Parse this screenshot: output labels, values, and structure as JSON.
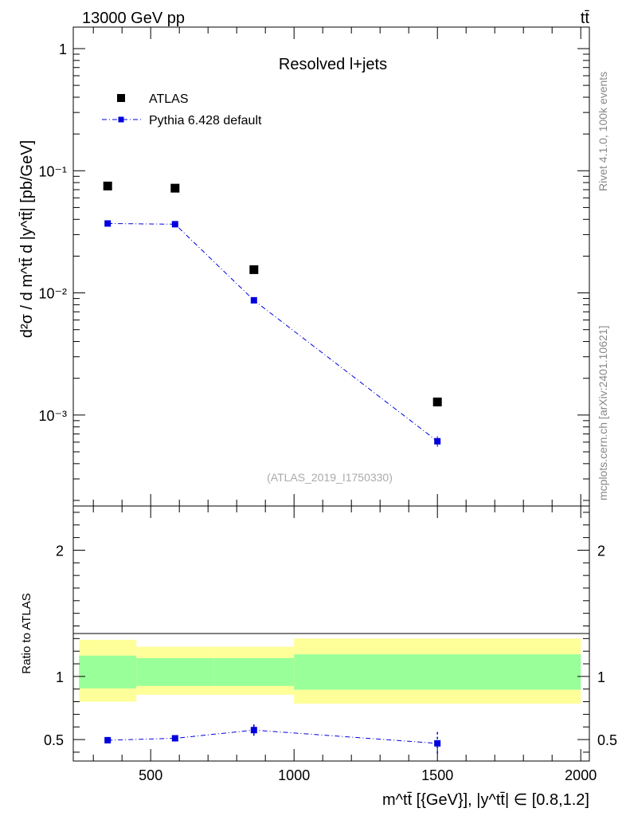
{
  "header": {
    "energy": "13000 GeV pp",
    "process": "tt̄"
  },
  "side_labels": {
    "rivet": "Rivet 4.1.0,  100k events",
    "source": "mcplots.cern.ch [arXiv:2401.10621]"
  },
  "chart_data": [
    {
      "type": "scatter",
      "panel": "main",
      "title": "Resolved l+jets",
      "analysis_id": "(ATLAS_2019_I1750330)",
      "ylabel": "d²σ / d m^tt̄ d |y^tt̄| [pb/GeV]",
      "yscale": "log",
      "ylim": [
        0.00018,
        1.5
      ],
      "xlim": [
        230,
        2030
      ],
      "yticks": [
        {
          "value": 1,
          "label": "1"
        },
        {
          "value": 0.1,
          "label": "10⁻¹"
        },
        {
          "value": 0.01,
          "label": "10⁻²"
        },
        {
          "value": 0.001,
          "label": "10⁻³"
        }
      ],
      "legend_position": "top-left",
      "series": [
        {
          "name": "ATLAS",
          "color": "#000000",
          "style": "markers",
          "x": [
            350,
            585,
            860,
            1500
          ],
          "y": [
            0.075,
            0.072,
            0.0155,
            0.00128
          ]
        },
        {
          "name": "Pythia 6.428 default",
          "color": "#0000dd",
          "style": "dash-dot line with markers",
          "x": [
            350,
            585,
            860,
            1500
          ],
          "y": [
            0.037,
            0.0365,
            0.0087,
            0.00061
          ],
          "yerr": [
            0.0008,
            0.0008,
            0.0004,
            6e-05
          ]
        }
      ]
    },
    {
      "type": "scatter",
      "panel": "ratio",
      "ylabel": "Ratio to ATLAS",
      "xlabel": "m^tt̄ [{GeV}], |y^tt̄| ∈ [0.8,1.2]",
      "ylim": [
        0.33,
        2.35
      ],
      "xlim": [
        230,
        2030
      ],
      "yticks": [
        {
          "value": 0.5,
          "label": "0.5"
        },
        {
          "value": 1,
          "label": "1"
        },
        {
          "value": 2,
          "label": "2"
        }
      ],
      "xticks": [
        {
          "value": 500,
          "label": "500"
        },
        {
          "value": 1000,
          "label": "1000"
        },
        {
          "value": 1500,
          "label": "1500"
        },
        {
          "value": 2000,
          "label": "2000"
        }
      ],
      "bands": [
        {
          "x0": 250,
          "x1": 450,
          "inner": [
            0.905,
            1.165
          ],
          "outer": [
            0.8,
            1.29
          ]
        },
        {
          "x0": 450,
          "x1": 720,
          "inner": [
            0.925,
            1.145
          ],
          "outer": [
            0.855,
            1.235
          ]
        },
        {
          "x0": 720,
          "x1": 1000,
          "inner": [
            0.925,
            1.145
          ],
          "outer": [
            0.855,
            1.235
          ]
        },
        {
          "x0": 1000,
          "x1": 2000,
          "inner": [
            0.895,
            1.175
          ],
          "outer": [
            0.785,
            1.3
          ]
        }
      ],
      "band_colors": {
        "inner": "#99ff99",
        "outer": "#ffff99"
      },
      "series": [
        {
          "name": "Pythia 6.428 default",
          "color": "#0000dd",
          "x": [
            350,
            585,
            860,
            1500
          ],
          "y": [
            0.495,
            0.51,
            0.575,
            0.47
          ],
          "yerr": [
            0.025,
            0.025,
            0.045,
            0.09
          ]
        }
      ]
    }
  ]
}
